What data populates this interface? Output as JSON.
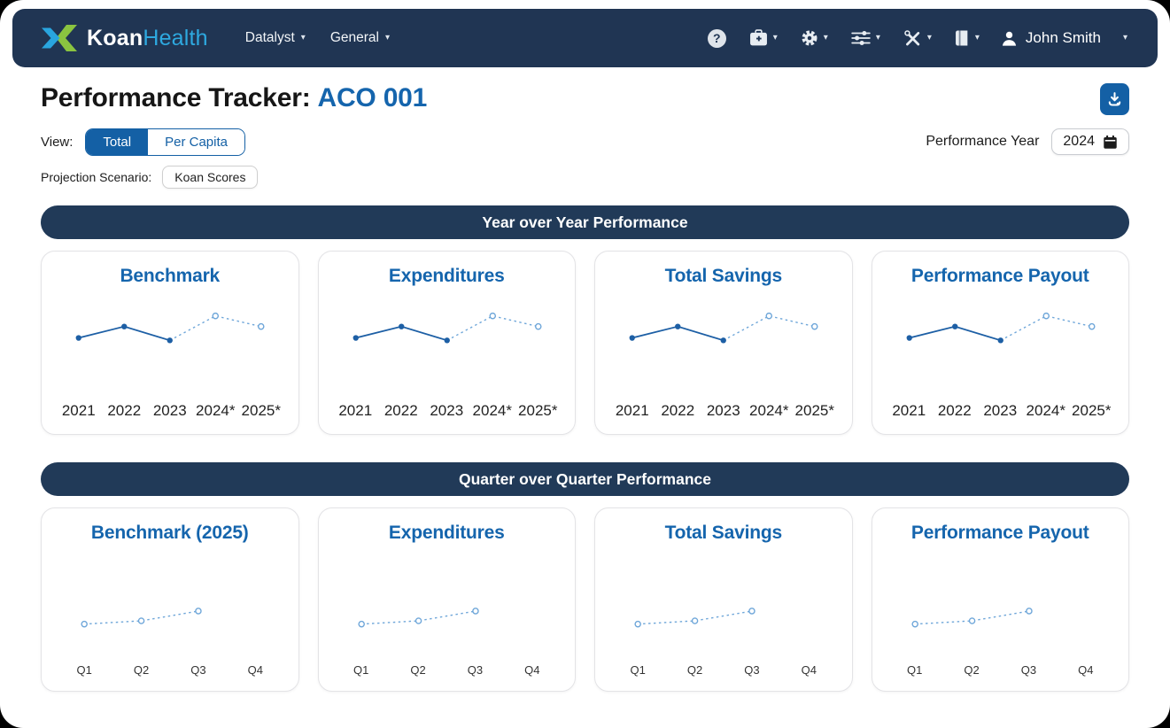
{
  "brand": {
    "name_primary": "Koan",
    "name_secondary": "Health"
  },
  "nav": {
    "caret_glyph": "▾",
    "menus": [
      {
        "label": "Datalyst"
      },
      {
        "label": "General"
      }
    ],
    "icons": [
      {
        "name": "help",
        "glyph": "?",
        "caret": false
      },
      {
        "name": "medical-kit",
        "caret": true
      },
      {
        "name": "settings-gear",
        "caret": true
      },
      {
        "name": "sliders",
        "caret": true
      },
      {
        "name": "tools",
        "caret": true
      },
      {
        "name": "book",
        "caret": true
      }
    ],
    "user": {
      "name": "John Smith"
    }
  },
  "header": {
    "title_prefix": "Performance Tracker:",
    "title_entity": "ACO 001"
  },
  "controls": {
    "view_label": "View:",
    "view_options": [
      {
        "label": "Total",
        "selected": true
      },
      {
        "label": "Per Capita",
        "selected": false
      }
    ],
    "performance_year_label": "Performance Year",
    "performance_year_value": "2024",
    "projection_label": "Projection Scenario:",
    "projection_value": "Koan Scores"
  },
  "colors": {
    "navy": "#203553",
    "banner_navy": "#213a58",
    "accent_blue": "#1565ad",
    "toggle_blue": "#1460a5",
    "brand_light_blue": "#2ea9e0",
    "logo_green": "#8ac440",
    "line_solid": "#1d5fa5",
    "line_projected": "#6ea6d9"
  },
  "chart_data": {
    "note": "see sections; sparklines have no y-axis, values are relative 0-100"
  },
  "sections": [
    {
      "title": "Year over Year Performance",
      "categories": [
        "2021",
        "2022",
        "2023",
        "2024*",
        "2025*"
      ],
      "small_labels": false,
      "cards": [
        {
          "title": "Benchmark",
          "values": [
            57,
            71,
            54,
            84,
            71
          ],
          "actual_count": 3
        },
        {
          "title": "Expenditures",
          "values": [
            57,
            71,
            54,
            84,
            71
          ],
          "actual_count": 3
        },
        {
          "title": "Total Savings",
          "values": [
            57,
            71,
            54,
            84,
            71
          ],
          "actual_count": 3
        },
        {
          "title": "Performance Payout",
          "values": [
            57,
            71,
            54,
            84,
            71
          ],
          "actual_count": 3
        }
      ]
    },
    {
      "title": "Quarter over Quarter Performance",
      "categories": [
        "Q1",
        "Q2",
        "Q3",
        "Q4"
      ],
      "small_labels": true,
      "cards": [
        {
          "title": "Benchmark (2025)",
          "values": [
            21,
            25,
            37,
            null
          ],
          "actual_count": 0
        },
        {
          "title": "Expenditures",
          "values": [
            21,
            25,
            37,
            null
          ],
          "actual_count": 0
        },
        {
          "title": "Total Savings",
          "values": [
            21,
            25,
            37,
            null
          ],
          "actual_count": 0
        },
        {
          "title": "Performance Payout",
          "values": [
            21,
            25,
            37,
            null
          ],
          "actual_count": 0
        }
      ]
    }
  ]
}
